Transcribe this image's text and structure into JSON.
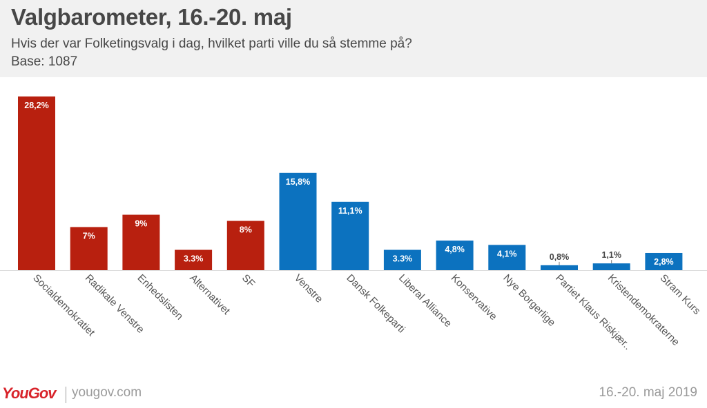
{
  "header": {
    "title": "Valgbarometer, 16.-20. maj",
    "subtitle": "Hvis der var Folketingsvalg i dag, hvilket parti ville du så stemme på?",
    "base": "Base: 1087"
  },
  "footer": {
    "logo": "YouGov",
    "site": "yougov.com",
    "date": "16.-20. maj 2019"
  },
  "colors": {
    "red": "#b8200f",
    "blue": "#0c72bf",
    "label_dark": "#474747"
  },
  "chart_data": {
    "type": "bar",
    "title": "Valgbarometer, 16.-20. maj",
    "xlabel": "",
    "ylabel": "",
    "ylim": [
      0,
      28.2
    ],
    "categories": [
      "Socialdemokratiet",
      "Radikale Venstre",
      "Enhedslisten",
      "Alternativet",
      "SF",
      "Venstre",
      "Dansk Folkeparti",
      "Liberal Alliance",
      "Konservative",
      "Nye Borgerlige",
      "Partiet Klaus Riskjær..",
      "Kristendemokraterne",
      "Stram Kurs"
    ],
    "values": [
      28.2,
      7,
      9,
      3.3,
      8,
      15.8,
      11.1,
      3.3,
      4.8,
      4.1,
      0.8,
      1.1,
      2.8
    ],
    "value_labels": [
      "28,2%",
      "7%",
      "9%",
      "3.3%",
      "8%",
      "15,8%",
      "11,1%",
      "3.3%",
      "4,8%",
      "4,1%",
      "0,8%",
      "1,1%",
      "2,8%"
    ],
    "blocs": [
      "red",
      "red",
      "red",
      "red",
      "red",
      "blue",
      "blue",
      "blue",
      "blue",
      "blue",
      "blue",
      "blue",
      "blue"
    ]
  }
}
